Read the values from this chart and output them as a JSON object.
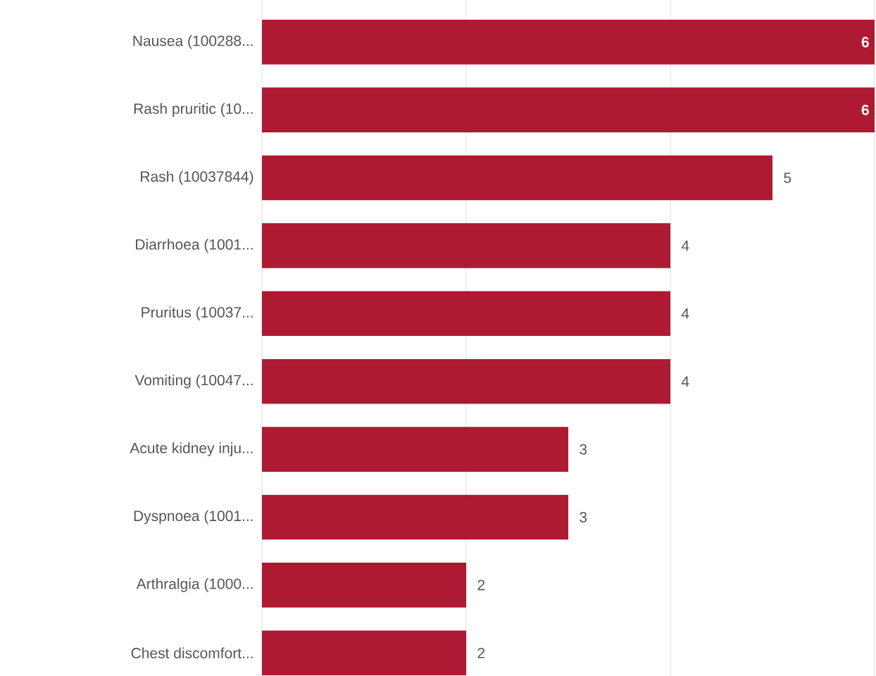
{
  "chart_data": {
    "type": "bar",
    "orientation": "horizontal",
    "categories": [
      "Nausea (100288...",
      "Rash pruritic (10...",
      "Rash (10037844)",
      "Diarrhoea (1001...",
      "Pruritus (10037...",
      "Vomiting (10047...",
      "Acute kidney inju...",
      "Dyspnoea (1001...",
      "Arthralgia (1000...",
      "Chest discomfort..."
    ],
    "values": [
      6,
      6,
      5,
      4,
      4,
      4,
      3,
      3,
      2,
      2
    ],
    "color": "#ae1a32",
    "xlim": [
      0,
      6
    ],
    "xticks": [
      {
        "value": 0,
        "label": null
      },
      {
        "value": 2,
        "label": null
      },
      {
        "value": 4,
        "label": null
      },
      {
        "value": 6,
        "label": null
      }
    ],
    "grid": "x",
    "data_labels": true
  }
}
